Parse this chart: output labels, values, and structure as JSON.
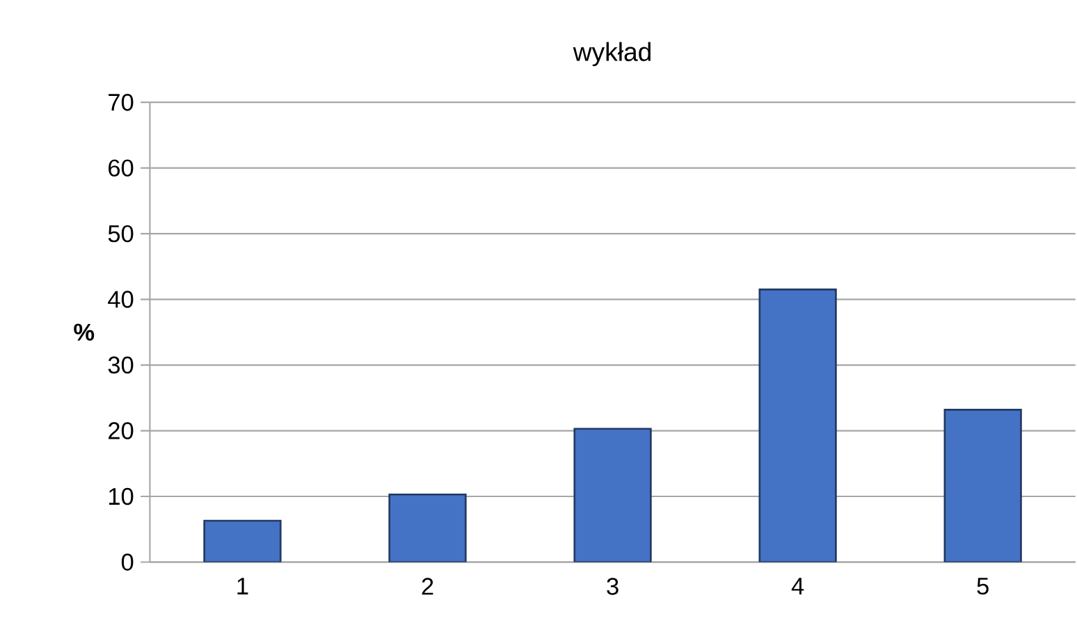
{
  "chart_data": {
    "type": "bar",
    "title": "wykład",
    "ylabel": "%",
    "categories": [
      "1",
      "2",
      "3",
      "4",
      "5"
    ],
    "values": [
      6.3,
      10.3,
      20.3,
      41.5,
      23.2
    ],
    "color": "#4472c4",
    "ylim": [
      0,
      70
    ],
    "yticks": [
      0,
      10,
      20,
      30,
      40,
      50,
      60,
      70
    ],
    "grid": "y"
  }
}
